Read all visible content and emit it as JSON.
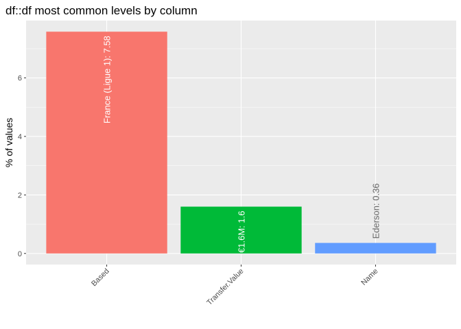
{
  "chart_data": {
    "type": "bar",
    "title": "df::df most common levels by column",
    "xlabel": "",
    "ylabel": "% of values",
    "categories": [
      "Based",
      "Transfer.Value",
      "Name"
    ],
    "values": [
      7.58,
      1.6,
      0.36
    ],
    "bar_labels": [
      "France (Ligue 1):  7.58",
      "€1.6M:  1.6",
      "Ederson:  0.36"
    ],
    "colors": [
      "#F8766D",
      "#00BA38",
      "#619CFF"
    ],
    "ylim": [
      -0.38,
      7.96
    ],
    "yticks": [
      0,
      2,
      4,
      6
    ],
    "ytick_labels": [
      "0",
      "2",
      "4",
      "6"
    ],
    "grid": true,
    "legend": "none"
  }
}
